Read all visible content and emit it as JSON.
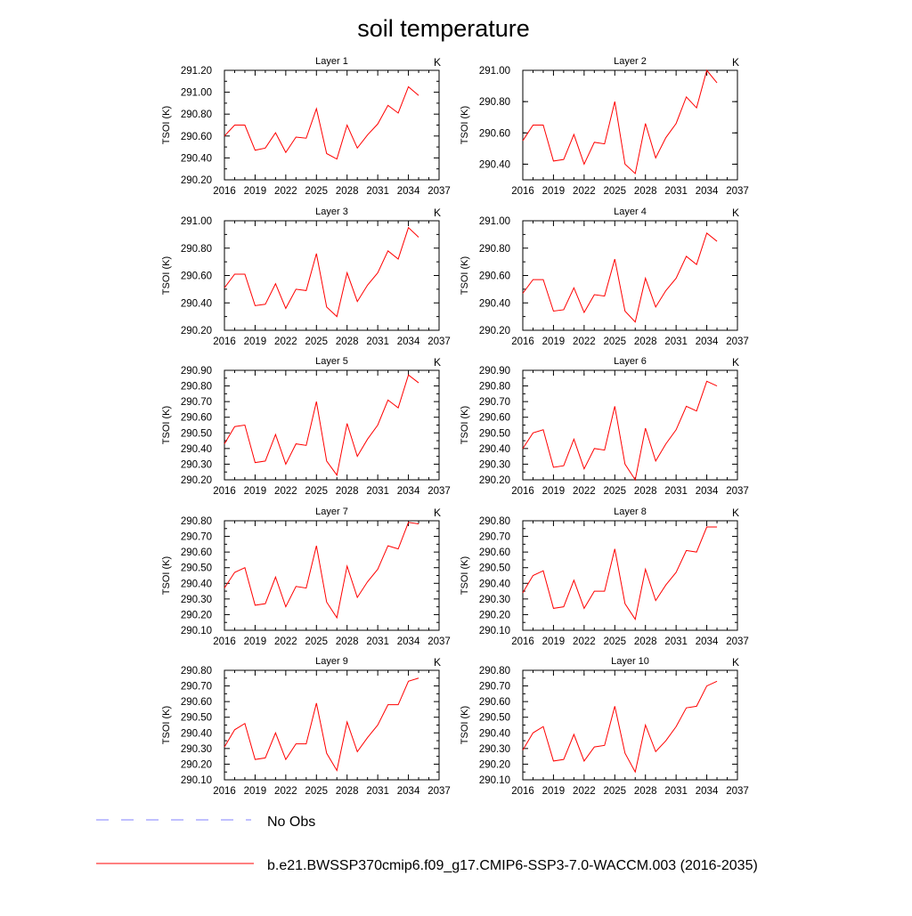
{
  "title": "soil temperature",
  "legend": {
    "placement": "bottom",
    "entries": [
      {
        "label": "No Obs",
        "color": "#8080ff",
        "style": "dashed"
      },
      {
        "label": "b.e21.BWSSP370cmip6.f09_g17.CMIP6-SSP3-7.0-WACCM.003 (2016-2035)",
        "color": "#ff0000",
        "style": "solid"
      }
    ]
  },
  "chart_data": [
    {
      "type": "line",
      "title": "Layer 1",
      "units": "K",
      "ylabel": "TSOI  (K)",
      "xlim": [
        2016,
        2037
      ],
      "ylim": [
        290.2,
        291.2
      ],
      "xticks": [
        2016,
        2019,
        2022,
        2025,
        2028,
        2031,
        2034,
        2037
      ],
      "yticks": [
        "290.20",
        "290.40",
        "290.60",
        "290.80",
        "291.00",
        "291.20"
      ],
      "series": [
        {
          "color": "#ff0000",
          "x": [
            2016,
            2017,
            2018,
            2019,
            2020,
            2021,
            2022,
            2023,
            2024,
            2025,
            2026,
            2027,
            2028,
            2029,
            2030,
            2031,
            2032,
            2033,
            2034,
            2035
          ],
          "y": [
            290.6,
            290.7,
            290.7,
            290.47,
            290.49,
            290.63,
            290.45,
            290.59,
            290.58,
            290.85,
            290.44,
            290.39,
            290.7,
            290.49,
            290.61,
            290.71,
            290.88,
            290.81,
            291.05,
            290.97
          ]
        }
      ]
    },
    {
      "type": "line",
      "title": "Layer 2",
      "units": "K",
      "ylabel": "TSOI  (K)",
      "xlim": [
        2016,
        2037
      ],
      "ylim": [
        290.3,
        291.0
      ],
      "xticks": [
        2016,
        2019,
        2022,
        2025,
        2028,
        2031,
        2034,
        2037
      ],
      "yticks": [
        "290.40",
        "290.60",
        "290.80",
        "291.00"
      ],
      "series": [
        {
          "color": "#ff0000",
          "x": [
            2016,
            2017,
            2018,
            2019,
            2020,
            2021,
            2022,
            2023,
            2024,
            2025,
            2026,
            2027,
            2028,
            2029,
            2030,
            2031,
            2032,
            2033,
            2034,
            2035
          ],
          "y": [
            290.55,
            290.65,
            290.65,
            290.42,
            290.43,
            290.59,
            290.4,
            290.54,
            290.53,
            290.8,
            290.4,
            290.34,
            290.66,
            290.44,
            290.57,
            290.66,
            290.83,
            290.76,
            291.0,
            290.92
          ]
        }
      ]
    },
    {
      "type": "line",
      "title": "Layer 3",
      "units": "K",
      "ylabel": "TSOI  (K)",
      "xlim": [
        2016,
        2037
      ],
      "ylim": [
        290.2,
        291.0
      ],
      "xticks": [
        2016,
        2019,
        2022,
        2025,
        2028,
        2031,
        2034,
        2037
      ],
      "yticks": [
        "290.20",
        "290.40",
        "290.60",
        "290.80",
        "291.00"
      ],
      "series": [
        {
          "color": "#ff0000",
          "x": [
            2016,
            2017,
            2018,
            2019,
            2020,
            2021,
            2022,
            2023,
            2024,
            2025,
            2026,
            2027,
            2028,
            2029,
            2030,
            2031,
            2032,
            2033,
            2034,
            2035
          ],
          "y": [
            290.51,
            290.61,
            290.61,
            290.38,
            290.39,
            290.54,
            290.36,
            290.5,
            290.49,
            290.76,
            290.37,
            290.3,
            290.62,
            290.41,
            290.53,
            290.62,
            290.78,
            290.72,
            290.95,
            290.88
          ]
        }
      ]
    },
    {
      "type": "line",
      "title": "Layer 4",
      "units": "K",
      "ylabel": "TSOI  (K)",
      "xlim": [
        2016,
        2037
      ],
      "ylim": [
        290.2,
        291.0
      ],
      "xticks": [
        2016,
        2019,
        2022,
        2025,
        2028,
        2031,
        2034,
        2037
      ],
      "yticks": [
        "290.20",
        "290.40",
        "290.60",
        "290.80",
        "291.00"
      ],
      "series": [
        {
          "color": "#ff0000",
          "x": [
            2016,
            2017,
            2018,
            2019,
            2020,
            2021,
            2022,
            2023,
            2024,
            2025,
            2026,
            2027,
            2028,
            2029,
            2030,
            2031,
            2032,
            2033,
            2034,
            2035
          ],
          "y": [
            290.47,
            290.57,
            290.57,
            290.34,
            290.35,
            290.51,
            290.33,
            290.46,
            290.45,
            290.72,
            290.34,
            290.26,
            290.58,
            290.37,
            290.49,
            290.58,
            290.74,
            290.68,
            290.91,
            290.85
          ]
        }
      ]
    },
    {
      "type": "line",
      "title": "Layer 5",
      "units": "K",
      "ylabel": "TSOI  (K)",
      "xlim": [
        2016,
        2037
      ],
      "ylim": [
        290.2,
        290.9
      ],
      "xticks": [
        2016,
        2019,
        2022,
        2025,
        2028,
        2031,
        2034,
        2037
      ],
      "yticks": [
        "290.20",
        "290.30",
        "290.40",
        "290.50",
        "290.60",
        "290.70",
        "290.80",
        "290.90"
      ],
      "series": [
        {
          "color": "#ff0000",
          "x": [
            2016,
            2017,
            2018,
            2019,
            2020,
            2021,
            2022,
            2023,
            2024,
            2025,
            2026,
            2027,
            2028,
            2029,
            2030,
            2031,
            2032,
            2033,
            2034,
            2035
          ],
          "y": [
            290.43,
            290.54,
            290.55,
            290.31,
            290.32,
            290.49,
            290.3,
            290.43,
            290.42,
            290.7,
            290.32,
            290.23,
            290.56,
            290.35,
            290.46,
            290.55,
            290.71,
            290.66,
            290.87,
            290.82
          ]
        }
      ]
    },
    {
      "type": "line",
      "title": "Layer 6",
      "units": "K",
      "ylabel": "TSOI  (K)",
      "xlim": [
        2016,
        2037
      ],
      "ylim": [
        290.2,
        290.9
      ],
      "xticks": [
        2016,
        2019,
        2022,
        2025,
        2028,
        2031,
        2034,
        2037
      ],
      "yticks": [
        "290.20",
        "290.30",
        "290.40",
        "290.50",
        "290.60",
        "290.70",
        "290.80",
        "290.90"
      ],
      "series": [
        {
          "color": "#ff0000",
          "x": [
            2016,
            2017,
            2018,
            2019,
            2020,
            2021,
            2022,
            2023,
            2024,
            2025,
            2026,
            2027,
            2028,
            2029,
            2030,
            2031,
            2032,
            2033,
            2034,
            2035
          ],
          "y": [
            290.4,
            290.5,
            290.52,
            290.28,
            290.29,
            290.46,
            290.27,
            290.4,
            290.39,
            290.67,
            290.3,
            290.2,
            290.53,
            290.32,
            290.43,
            290.52,
            290.67,
            290.64,
            290.83,
            290.8
          ]
        }
      ]
    },
    {
      "type": "line",
      "title": "Layer 7",
      "units": "K",
      "ylabel": "TSOI  (K)",
      "xlim": [
        2016,
        2037
      ],
      "ylim": [
        290.1,
        290.8
      ],
      "xticks": [
        2016,
        2019,
        2022,
        2025,
        2028,
        2031,
        2034,
        2037
      ],
      "yticks": [
        "290.10",
        "290.20",
        "290.30",
        "290.40",
        "290.50",
        "290.60",
        "290.70",
        "290.80"
      ],
      "series": [
        {
          "color": "#ff0000",
          "x": [
            2016,
            2017,
            2018,
            2019,
            2020,
            2021,
            2022,
            2023,
            2024,
            2025,
            2026,
            2027,
            2028,
            2029,
            2030,
            2031,
            2032,
            2033,
            2034,
            2035
          ],
          "y": [
            290.37,
            290.47,
            290.5,
            290.26,
            290.27,
            290.44,
            290.25,
            290.38,
            290.37,
            290.64,
            290.28,
            290.18,
            290.51,
            290.31,
            290.41,
            290.49,
            290.64,
            290.62,
            290.79,
            290.78
          ]
        }
      ]
    },
    {
      "type": "line",
      "title": "Layer 8",
      "units": "K",
      "ylabel": "TSOI  (K)",
      "xlim": [
        2016,
        2037
      ],
      "ylim": [
        290.1,
        290.8
      ],
      "xticks": [
        2016,
        2019,
        2022,
        2025,
        2028,
        2031,
        2034,
        2037
      ],
      "yticks": [
        "290.10",
        "290.20",
        "290.30",
        "290.40",
        "290.50",
        "290.60",
        "290.70",
        "290.80"
      ],
      "series": [
        {
          "color": "#ff0000",
          "x": [
            2016,
            2017,
            2018,
            2019,
            2020,
            2021,
            2022,
            2023,
            2024,
            2025,
            2026,
            2027,
            2028,
            2029,
            2030,
            2031,
            2032,
            2033,
            2034,
            2035
          ],
          "y": [
            290.34,
            290.45,
            290.48,
            290.24,
            290.25,
            290.42,
            290.24,
            290.35,
            290.35,
            290.62,
            290.27,
            290.17,
            290.49,
            290.29,
            290.39,
            290.47,
            290.61,
            290.6,
            290.76,
            290.76
          ]
        }
      ]
    },
    {
      "type": "line",
      "title": "Layer 9",
      "units": "K",
      "ylabel": "TSOI  (K)",
      "xlim": [
        2016,
        2037
      ],
      "ylim": [
        290.1,
        290.8
      ],
      "xticks": [
        2016,
        2019,
        2022,
        2025,
        2028,
        2031,
        2034,
        2037
      ],
      "yticks": [
        "290.10",
        "290.20",
        "290.30",
        "290.40",
        "290.50",
        "290.60",
        "290.70",
        "290.80"
      ],
      "series": [
        {
          "color": "#ff0000",
          "x": [
            2016,
            2017,
            2018,
            2019,
            2020,
            2021,
            2022,
            2023,
            2024,
            2025,
            2026,
            2027,
            2028,
            2029,
            2030,
            2031,
            2032,
            2033,
            2034,
            2035
          ],
          "y": [
            290.31,
            290.42,
            290.46,
            290.23,
            290.24,
            290.4,
            290.23,
            290.33,
            290.33,
            290.59,
            290.27,
            290.16,
            290.47,
            290.28,
            290.37,
            290.45,
            290.58,
            290.58,
            290.73,
            290.75
          ]
        }
      ]
    },
    {
      "type": "line",
      "title": "Layer 10",
      "units": "K",
      "ylabel": "TSOI  (K)",
      "xlim": [
        2016,
        2037
      ],
      "ylim": [
        290.1,
        290.8
      ],
      "xticks": [
        2016,
        2019,
        2022,
        2025,
        2028,
        2031,
        2034,
        2037
      ],
      "yticks": [
        "290.10",
        "290.20",
        "290.30",
        "290.40",
        "290.50",
        "290.60",
        "290.70",
        "290.80"
      ],
      "series": [
        {
          "color": "#ff0000",
          "x": [
            2016,
            2017,
            2018,
            2019,
            2020,
            2021,
            2022,
            2023,
            2024,
            2025,
            2026,
            2027,
            2028,
            2029,
            2030,
            2031,
            2032,
            2033,
            2034,
            2035
          ],
          "y": [
            290.29,
            290.4,
            290.44,
            290.22,
            290.23,
            290.39,
            290.22,
            290.31,
            290.32,
            290.57,
            290.27,
            290.15,
            290.45,
            290.28,
            290.35,
            290.44,
            290.56,
            290.57,
            290.7,
            290.73
          ]
        }
      ]
    }
  ]
}
